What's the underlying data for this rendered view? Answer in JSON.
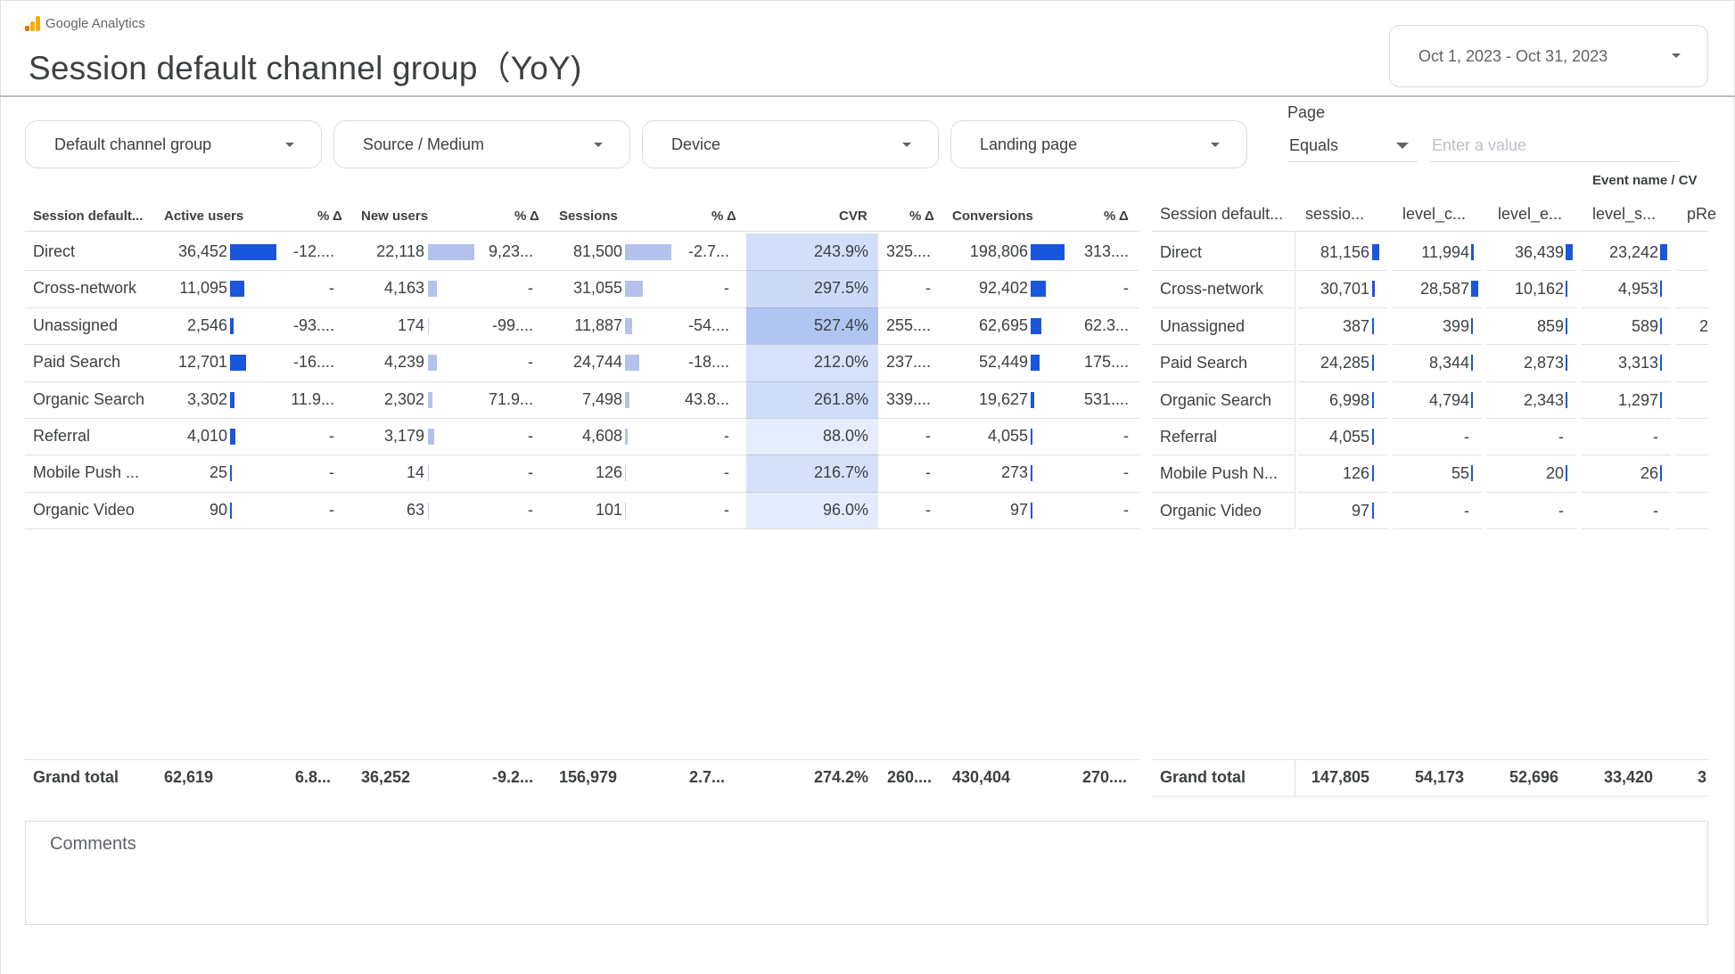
{
  "header": {
    "brand": "Google Analytics",
    "title": "Session default channel group（YoY)",
    "date_range": "Oct 1, 2023 - Oct 31, 2023"
  },
  "filters": {
    "channel": "Default channel group",
    "source_medium": "Source / Medium",
    "device": "Device",
    "landing_page": "Landing page",
    "page_label": "Page",
    "page_operator": "Equals",
    "page_value_placeholder": "Enter a value"
  },
  "left_table": {
    "headers": {
      "channel": "Session default...",
      "active_users": "Active users",
      "active_users_delta": "% Δ",
      "new_users": "New users",
      "new_users_delta": "% Δ",
      "sessions": "Sessions",
      "sessions_delta": "% Δ",
      "cvr": "CVR",
      "cvr_delta": "% Δ",
      "conversions": "Conversions",
      "conversions_delta": "% Δ"
    },
    "rows": [
      {
        "channel": "Direct",
        "active_users": "36,452",
        "au_bar": 1.0,
        "au_delta": "-12....",
        "new_users": "22,118",
        "nu_bar": 1.0,
        "nu_delta": "9,23...",
        "sessions": "81,500",
        "s_bar": 1.0,
        "s_delta": "-2.7...",
        "cvr": "243.9%",
        "cvr_level": 0.46,
        "cvr_delta": "325....",
        "conversions": "198,806",
        "c_bar": 1.0,
        "c_delta": "313...."
      },
      {
        "channel": "Cross-network",
        "active_users": "11,095",
        "au_bar": 0.3,
        "au_delta": "-",
        "new_users": "4,163",
        "nu_bar": 0.19,
        "nu_delta": "-",
        "sessions": "31,055",
        "s_bar": 0.38,
        "s_delta": "-",
        "cvr": "297.5%",
        "cvr_level": 0.56,
        "cvr_delta": "-",
        "conversions": "92,402",
        "c_bar": 0.46,
        "c_delta": "-"
      },
      {
        "channel": "Unassigned",
        "active_users": "2,546",
        "au_bar": 0.07,
        "au_delta": "-93....",
        "new_users": "174",
        "nu_bar": 0.01,
        "nu_delta": "-99....",
        "sessions": "11,887",
        "s_bar": 0.15,
        "s_delta": "-54....",
        "cvr": "527.4%",
        "cvr_level": 1.0,
        "cvr_delta": "255....",
        "conversions": "62,695",
        "c_bar": 0.32,
        "c_delta": "62.3..."
      },
      {
        "channel": "Paid Search",
        "active_users": "12,701",
        "au_bar": 0.35,
        "au_delta": "-16....",
        "new_users": "4,239",
        "nu_bar": 0.19,
        "nu_delta": "-",
        "sessions": "24,744",
        "s_bar": 0.3,
        "s_delta": "-18....",
        "cvr": "212.0%",
        "cvr_level": 0.4,
        "cvr_delta": "237....",
        "conversions": "52,449",
        "c_bar": 0.26,
        "c_delta": "175...."
      },
      {
        "channel": "Organic Search",
        "active_users": "3,302",
        "au_bar": 0.09,
        "au_delta": "11.9...",
        "new_users": "2,302",
        "nu_bar": 0.1,
        "nu_delta": "71.9...",
        "sessions": "7,498",
        "s_bar": 0.09,
        "s_delta": "43.8...",
        "cvr": "261.8%",
        "cvr_level": 0.5,
        "cvr_delta": "339....",
        "conversions": "19,627",
        "c_bar": 0.1,
        "c_delta": "531...."
      },
      {
        "channel": "Referral",
        "active_users": "4,010",
        "au_bar": 0.11,
        "au_delta": "-",
        "new_users": "3,179",
        "nu_bar": 0.14,
        "nu_delta": "-",
        "sessions": "4,608",
        "s_bar": 0.06,
        "s_delta": "-",
        "cvr": "88.0%",
        "cvr_level": 0.17,
        "cvr_delta": "-",
        "conversions": "4,055",
        "c_bar": 0.02,
        "c_delta": "-"
      },
      {
        "channel": "Mobile Push ...",
        "active_users": "25",
        "au_bar": 0.0,
        "au_delta": "-",
        "new_users": "14",
        "nu_bar": 0.0,
        "nu_delta": "-",
        "sessions": "126",
        "s_bar": 0.0,
        "s_delta": "-",
        "cvr": "216.7%",
        "cvr_level": 0.41,
        "cvr_delta": "-",
        "conversions": "273",
        "c_bar": 0.0,
        "c_delta": "-"
      },
      {
        "channel": "Organic Video",
        "active_users": "90",
        "au_bar": 0.0,
        "au_delta": "-",
        "new_users": "63",
        "nu_bar": 0.0,
        "nu_delta": "-",
        "sessions": "101",
        "s_bar": 0.0,
        "s_delta": "-",
        "cvr": "96.0%",
        "cvr_level": 0.18,
        "cvr_delta": "-",
        "conversions": "97",
        "c_bar": 0.0,
        "c_delta": "-"
      }
    ],
    "grand_total": {
      "label": "Grand total",
      "active_users": "62,619",
      "au_delta": "6.8...",
      "new_users": "36,252",
      "nu_delta": "-9.2...",
      "sessions": "156,979",
      "s_delta": "2.7...",
      "cvr": "274.2%",
      "cvr_delta": "260....",
      "conversions": "430,404",
      "c_delta": "270...."
    }
  },
  "right_table": {
    "group_header": "Event name / CV",
    "headers": {
      "channel": "Session default...",
      "sessions": "sessio...",
      "level_c": "level_c...",
      "level_e": "level_e...",
      "level_s": "level_s...",
      "pr": "pRe"
    },
    "rows": [
      {
        "channel": "Direct",
        "sessions": "81,156",
        "s_bar": 1.0,
        "level_c": "11,994",
        "lc_bar": 0.42,
        "level_e": "36,439",
        "le_bar": 1.0,
        "level_s": "23,242",
        "ls_bar": 1.0,
        "pr": ""
      },
      {
        "channel": "Cross-network",
        "sessions": "30,701",
        "s_bar": 0.38,
        "level_c": "28,587",
        "lc_bar": 1.0,
        "level_e": "10,162",
        "le_bar": 0.28,
        "level_s": "4,953",
        "ls_bar": 0.21,
        "pr": ""
      },
      {
        "channel": "Unassigned",
        "sessions": "387",
        "s_bar": 0.0,
        "level_c": "399",
        "lc_bar": 0.01,
        "level_e": "859",
        "le_bar": 0.02,
        "level_s": "589",
        "ls_bar": 0.03,
        "pr": "2"
      },
      {
        "channel": "Paid Search",
        "sessions": "24,285",
        "s_bar": 0.3,
        "level_c": "8,344",
        "lc_bar": 0.29,
        "level_e": "2,873",
        "le_bar": 0.08,
        "level_s": "3,313",
        "ls_bar": 0.14,
        "pr": ""
      },
      {
        "channel": "Organic Search",
        "sessions": "6,998",
        "s_bar": 0.09,
        "level_c": "4,794",
        "lc_bar": 0.17,
        "level_e": "2,343",
        "le_bar": 0.06,
        "level_s": "1,297",
        "ls_bar": 0.06,
        "pr": ""
      },
      {
        "channel": "Referral",
        "sessions": "4,055",
        "s_bar": 0.05,
        "level_c": "-",
        "lc_bar": null,
        "level_e": "-",
        "le_bar": null,
        "level_s": "-",
        "ls_bar": null,
        "pr": ""
      },
      {
        "channel": "Mobile Push N...",
        "sessions": "126",
        "s_bar": 0.0,
        "level_c": "55",
        "lc_bar": 0.0,
        "level_e": "20",
        "le_bar": 0.0,
        "level_s": "26",
        "ls_bar": 0.0,
        "pr": ""
      },
      {
        "channel": "Organic Video",
        "sessions": "97",
        "s_bar": 0.0,
        "level_c": "-",
        "lc_bar": null,
        "level_e": "-",
        "le_bar": null,
        "level_s": "-",
        "ls_bar": null,
        "pr": ""
      }
    ],
    "grand_total": {
      "label": "Grand total",
      "sessions": "147,805",
      "level_c": "54,173",
      "level_e": "52,696",
      "level_s": "33,420",
      "pr": "3"
    }
  },
  "comments": {
    "label": "Comments"
  },
  "colors": {
    "bar_dark": "#1a56db",
    "bar_light": "#b3c1ec",
    "cvr_heat": "#7f96e0"
  }
}
